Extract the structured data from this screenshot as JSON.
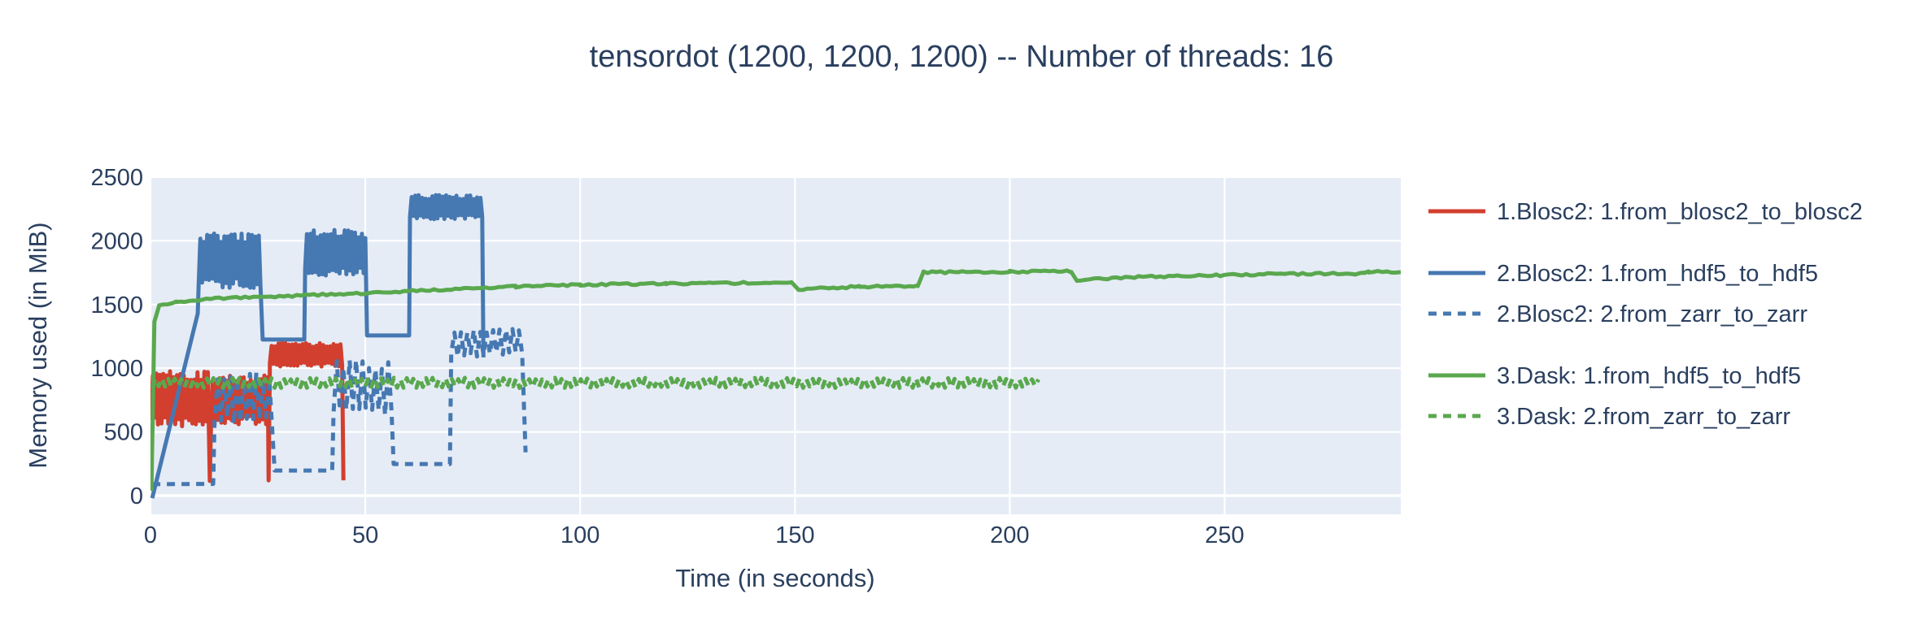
{
  "title": "tensordot (1200, 1200, 1200) -- Number of threads: 16",
  "colors": {
    "red": "#d23f2e",
    "blue": "#4678b2",
    "green": "#5aa84e",
    "text": "#2a3f5f",
    "plot_bg": "#e5ecf6",
    "grid": "#ffffff",
    "background": "#ffffff"
  },
  "chart_data": {
    "type": "line",
    "title": "tensordot (1200, 1200, 1200) -- Number of threads: 16",
    "xlabel": "Time (in seconds)",
    "ylabel": "Memory used (in MiB)",
    "xlim": [
      0,
      291
    ],
    "ylim": [
      -147,
      2515
    ],
    "xticks": [
      0,
      50,
      100,
      150,
      200,
      250
    ],
    "yticks": [
      0,
      500,
      1000,
      1500,
      2000,
      2500
    ],
    "grid": true,
    "legend_position": "right",
    "series": [
      {
        "name": "1.Blosc2: 1.from_blosc2_to_blosc2",
        "color": "red",
        "dash": false,
        "group": 1,
        "segments": [
          {
            "type": "noise",
            "t0": 0.15,
            "t1": 13.6,
            "lo": 545,
            "hi": 985
          },
          {
            "type": "line",
            "pts": [
              [
                13.8,
                115
              ]
            ]
          },
          {
            "type": "noise",
            "t0": 14.1,
            "t1": 27.3,
            "lo": 555,
            "hi": 950
          },
          {
            "type": "line",
            "pts": [
              [
                27.5,
                120
              ]
            ]
          },
          {
            "type": "noise",
            "t0": 27.8,
            "t1": 44.7,
            "lo": 1010,
            "hi": 1200
          },
          {
            "type": "line",
            "pts": [
              [
                44.9,
                120
              ]
            ]
          }
        ]
      },
      {
        "name": "2.Blosc2: 1.from_hdf5_to_hdf5",
        "color": "blue",
        "dash": false,
        "group": 2,
        "segments": [
          {
            "type": "line",
            "pts": [
              [
                0.4,
                -20
              ],
              [
                11.0,
                1430
              ]
            ]
          },
          {
            "type": "noise",
            "t0": 11.2,
            "t1": 25.7,
            "lo": 1630,
            "hi": 2060
          },
          {
            "type": "line",
            "pts": [
              [
                26.1,
                1225
              ],
              [
                35.8,
                1225
              ]
            ]
          },
          {
            "type": "noise",
            "t0": 36.0,
            "t1": 50.0,
            "lo": 1725,
            "hi": 2085
          },
          {
            "type": "line",
            "pts": [
              [
                50.4,
                1257
              ],
              [
                60.2,
                1257
              ]
            ]
          },
          {
            "type": "noise",
            "t0": 60.4,
            "t1": 77.3,
            "lo": 2170,
            "hi": 2360
          },
          {
            "type": "line",
            "pts": [
              [
                77.5,
                1085
              ]
            ]
          }
        ]
      },
      {
        "name": "2.Blosc2: 2.from_zarr_to_zarr",
        "color": "blue",
        "dash": true,
        "group": 2,
        "segments": [
          {
            "type": "line",
            "pts": [
              [
                0.4,
                90
              ],
              [
                14.6,
                92
              ]
            ]
          },
          {
            "type": "noise",
            "t0": 14.9,
            "t1": 28.2,
            "lo": 555,
            "hi": 975
          },
          {
            "type": "line",
            "pts": [
              [
                28.9,
                197
              ],
              [
                42.3,
                197
              ]
            ]
          },
          {
            "type": "noise",
            "t0": 42.6,
            "t1": 56.1,
            "lo": 630,
            "hi": 1065
          },
          {
            "type": "line",
            "pts": [
              [
                56.6,
                248
              ],
              [
                69.7,
                248
              ]
            ]
          },
          {
            "type": "noise",
            "t0": 70.0,
            "t1": 87.1,
            "lo": 1090,
            "hi": 1310
          },
          {
            "type": "line",
            "pts": [
              [
                87.3,
                340
              ]
            ]
          }
        ]
      },
      {
        "name": "3.Dask: 1.from_hdf5_to_hdf5",
        "color": "green",
        "dash": false,
        "group": 3,
        "jitter": 8,
        "segments": [
          {
            "type": "line",
            "pts": [
              [
                0.2,
                40
              ],
              [
                0.9,
                1370
              ],
              [
                2.0,
                1490
              ],
              [
                6,
                1522
              ],
              [
                15,
                1548
              ],
              [
                30,
                1565
              ],
              [
                50,
                1590
              ],
              [
                70,
                1618
              ],
              [
                85,
                1642
              ],
              [
                100,
                1655
              ],
              [
                120,
                1663
              ],
              [
                135,
                1668
              ],
              [
                149.2,
                1675
              ],
              [
                150.8,
                1620
              ],
              [
                165,
                1640
              ],
              [
                178.6,
                1648
              ],
              [
                179.9,
                1752
              ],
              [
                200,
                1757
              ],
              [
                214.3,
                1760
              ],
              [
                215.6,
                1692
              ],
              [
                230,
                1716
              ],
              [
                248,
                1730
              ],
              [
                264,
                1740
              ],
              [
                282.5,
                1743
              ],
              [
                283.5,
                1756
              ],
              [
                291,
                1757
              ]
            ]
          }
        ]
      },
      {
        "name": "3.Dask: 2.from_zarr_to_zarr",
        "color": "green",
        "dash": true,
        "group": 3,
        "segments": [
          {
            "type": "noise",
            "t0": 0.4,
            "t1": 206.8,
            "lo": 845,
            "hi": 925
          }
        ]
      }
    ]
  }
}
